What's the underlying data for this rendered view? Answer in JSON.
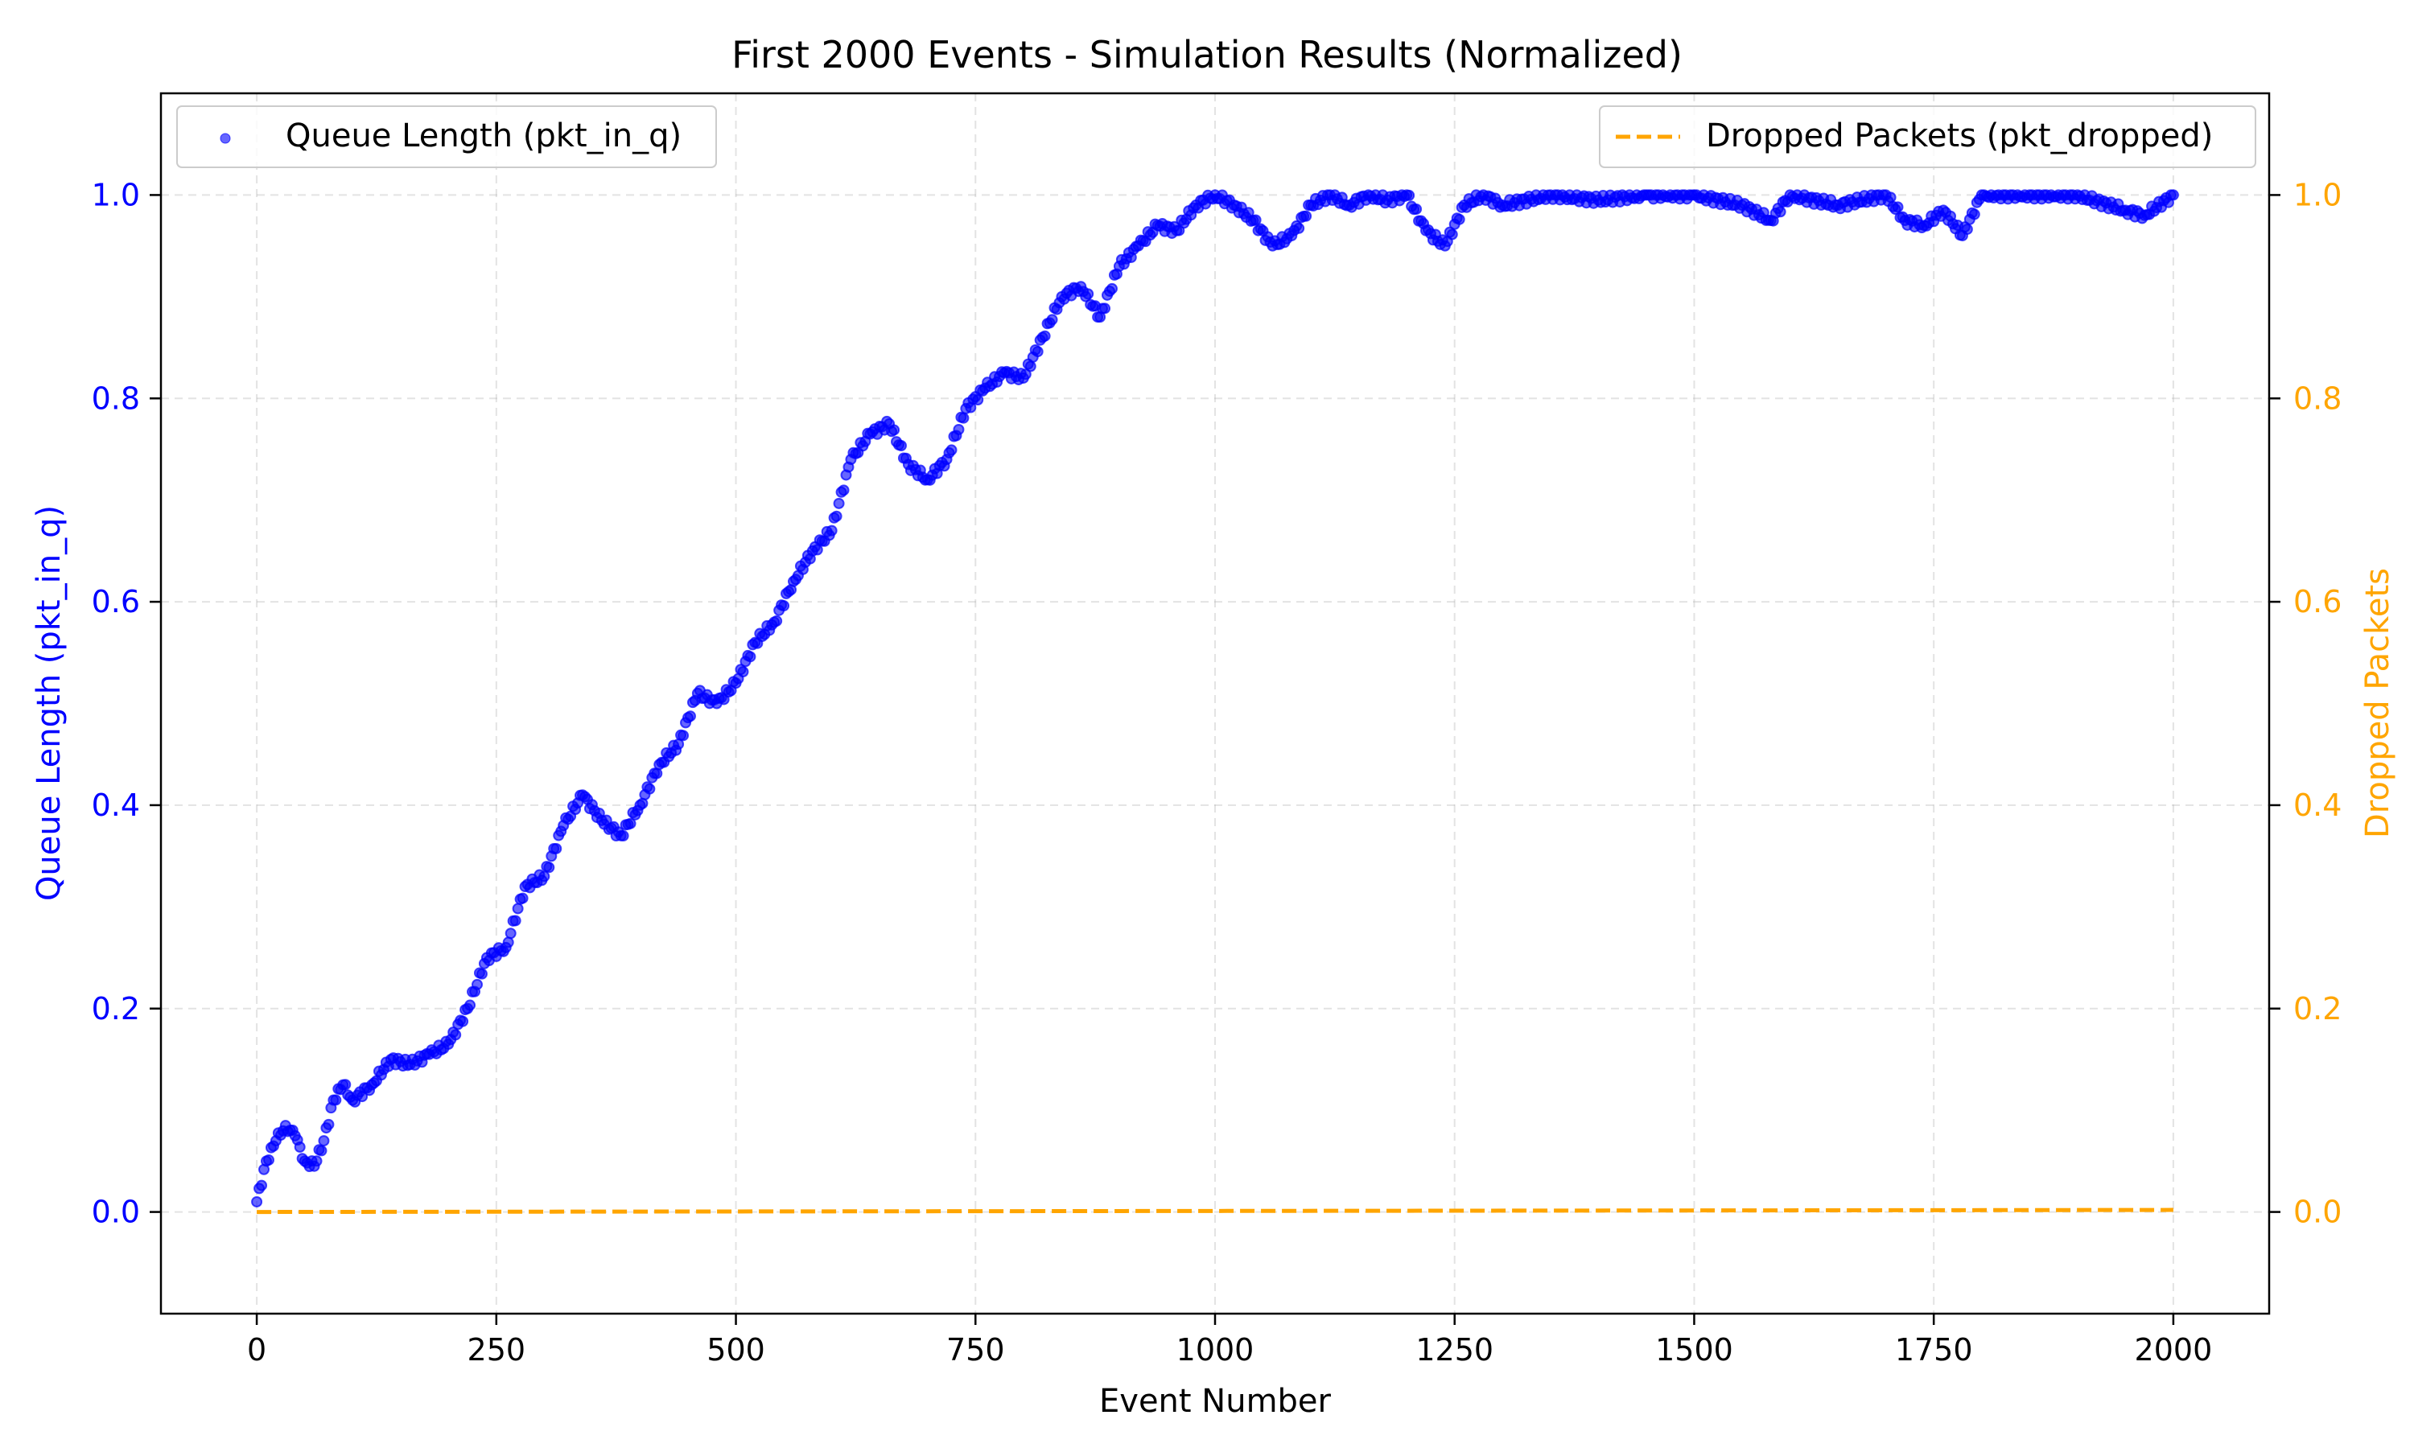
{
  "chart_data": {
    "type": "scatter",
    "title": "First 2000 Events - Simulation Results (Normalized)",
    "xlabel": "Event Number",
    "ylabel_left": "Queue Length (pkt_in_q)",
    "ylabel_right": "Dropped Packets",
    "xlim": [
      -100,
      2100
    ],
    "ylim_left": [
      -0.1,
      1.1
    ],
    "ylim_right": [
      -0.1,
      1.1
    ],
    "x_ticks": [
      0,
      250,
      500,
      750,
      1000,
      1250,
      1500,
      1750,
      2000
    ],
    "x_tick_labels": [
      "0",
      "250",
      "500",
      "750",
      "1000",
      "1250",
      "1500",
      "1750",
      "2000"
    ],
    "y_ticks": [
      0.0,
      0.2,
      0.4,
      0.6,
      0.8,
      1.0
    ],
    "y_tick_labels": [
      "0.0",
      "0.2",
      "0.4",
      "0.6",
      "0.8",
      "1.0"
    ],
    "grid": true,
    "series": [
      {
        "name": "Queue Length (pkt_in_q)",
        "kind": "scatter",
        "axis": "left",
        "color": "#0000ff",
        "legend_position": "top-left",
        "points": [
          [
            0,
            0.01
          ],
          [
            10,
            0.05
          ],
          [
            20,
            0.07
          ],
          [
            30,
            0.085
          ],
          [
            40,
            0.075
          ],
          [
            50,
            0.05
          ],
          [
            60,
            0.045
          ],
          [
            70,
            0.07
          ],
          [
            80,
            0.11
          ],
          [
            90,
            0.125
          ],
          [
            100,
            0.11
          ],
          [
            120,
            0.125
          ],
          [
            140,
            0.15
          ],
          [
            160,
            0.145
          ],
          [
            180,
            0.155
          ],
          [
            200,
            0.165
          ],
          [
            220,
            0.2
          ],
          [
            240,
            0.25
          ],
          [
            260,
            0.26
          ],
          [
            280,
            0.32
          ],
          [
            300,
            0.33
          ],
          [
            320,
            0.38
          ],
          [
            340,
            0.41
          ],
          [
            360,
            0.385
          ],
          [
            380,
            0.37
          ],
          [
            400,
            0.4
          ],
          [
            420,
            0.44
          ],
          [
            440,
            0.46
          ],
          [
            460,
            0.51
          ],
          [
            480,
            0.5
          ],
          [
            500,
            0.52
          ],
          [
            520,
            0.56
          ],
          [
            540,
            0.58
          ],
          [
            560,
            0.62
          ],
          [
            580,
            0.65
          ],
          [
            600,
            0.67
          ],
          [
            620,
            0.74
          ],
          [
            640,
            0.765
          ],
          [
            660,
            0.775
          ],
          [
            680,
            0.735
          ],
          [
            700,
            0.72
          ],
          [
            720,
            0.74
          ],
          [
            740,
            0.79
          ],
          [
            760,
            0.81
          ],
          [
            780,
            0.825
          ],
          [
            800,
            0.82
          ],
          [
            820,
            0.86
          ],
          [
            840,
            0.9
          ],
          [
            860,
            0.91
          ],
          [
            880,
            0.88
          ],
          [
            900,
            0.93
          ],
          [
            920,
            0.95
          ],
          [
            940,
            0.97
          ],
          [
            960,
            0.965
          ],
          [
            980,
            0.99
          ],
          [
            1000,
            1.0
          ],
          [
            1020,
            0.99
          ],
          [
            1040,
            0.975
          ],
          [
            1060,
            0.95
          ],
          [
            1080,
            0.96
          ],
          [
            1100,
            0.99
          ],
          [
            1120,
            1.0
          ],
          [
            1140,
            0.99
          ],
          [
            1160,
            1.0
          ],
          [
            1180,
            0.995
          ],
          [
            1200,
            1.0
          ],
          [
            1220,
            0.965
          ],
          [
            1240,
            0.95
          ],
          [
            1260,
            0.99
          ],
          [
            1280,
            1.0
          ],
          [
            1300,
            0.99
          ],
          [
            1350,
            1.0
          ],
          [
            1400,
            0.995
          ],
          [
            1450,
            1.0
          ],
          [
            1500,
            1.0
          ],
          [
            1550,
            0.99
          ],
          [
            1580,
            0.975
          ],
          [
            1600,
            1.0
          ],
          [
            1650,
            0.99
          ],
          [
            1700,
            1.0
          ],
          [
            1720,
            0.975
          ],
          [
            1740,
            0.97
          ],
          [
            1760,
            0.985
          ],
          [
            1780,
            0.96
          ],
          [
            1800,
            1.0
          ],
          [
            1850,
            1.0
          ],
          [
            1900,
            1.0
          ],
          [
            1950,
            0.985
          ],
          [
            1970,
            0.98
          ],
          [
            2000,
            1.0
          ]
        ]
      },
      {
        "name": "Dropped Packets (pkt_dropped)",
        "kind": "line",
        "style": "dashed",
        "axis": "right",
        "color": "#ffa500",
        "legend_position": "top-right",
        "points": [
          [
            0,
            0.0
          ],
          [
            2000,
            0.002
          ]
        ]
      }
    ]
  }
}
